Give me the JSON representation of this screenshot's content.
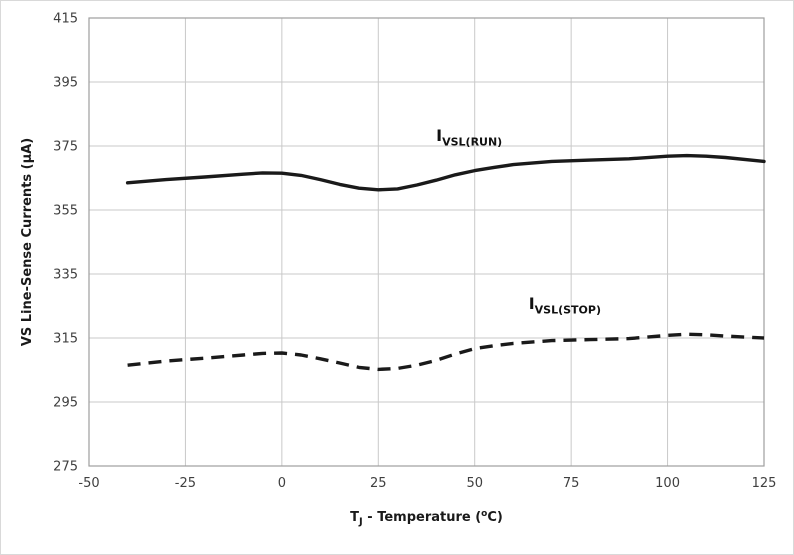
{
  "colors": {
    "line": "#1a1a1a",
    "grid": "#c9c9c9",
    "axis": "#9e9e9e",
    "tick_text": "#3f3f3f",
    "background": "#ffffff"
  },
  "chart_data": {
    "type": "line",
    "title": "",
    "xlabel_parts": [
      {
        "t": "T"
      },
      {
        "t": "J",
        "sub": true
      },
      {
        "t": " - Temperature ("
      },
      {
        "t": "o",
        "sup": true
      },
      {
        "t": "C)"
      }
    ],
    "ylabel": "VS Line-Sense Currents (µA)",
    "xlim": [
      -50,
      125
    ],
    "ylim": [
      275,
      415
    ],
    "xticks": [
      -50,
      -25,
      0,
      25,
      50,
      75,
      100,
      125
    ],
    "yticks": [
      275,
      295,
      315,
      335,
      355,
      375,
      395,
      415
    ],
    "grid": true,
    "legend_position": "inline-annotations",
    "series": [
      {
        "id": "ivsl-run",
        "name": "IVSL(RUN)",
        "style": "solid",
        "x": [
          -40,
          -30,
          -20,
          -10,
          -5,
          0,
          5,
          10,
          15,
          20,
          25,
          30,
          35,
          40,
          45,
          50,
          55,
          60,
          70,
          80,
          90,
          100,
          105,
          110,
          115,
          125
        ],
        "y": [
          363.5,
          364.5,
          365.3,
          366.2,
          366.6,
          366.5,
          365.8,
          364.5,
          363.0,
          361.8,
          361.3,
          361.6,
          362.8,
          364.3,
          366.0,
          367.3,
          368.3,
          369.2,
          370.2,
          370.6,
          371.0,
          371.8,
          372.0,
          371.8,
          371.4,
          370.2
        ]
      },
      {
        "id": "ivsl-stop",
        "name": "IVSL(STOP)",
        "style": "dashed",
        "x": [
          -40,
          -30,
          -20,
          -10,
          -5,
          0,
          5,
          10,
          15,
          20,
          25,
          30,
          35,
          40,
          45,
          50,
          55,
          60,
          70,
          80,
          90,
          100,
          105,
          110,
          115,
          125
        ],
        "y": [
          306.5,
          307.8,
          308.7,
          309.7,
          310.2,
          310.3,
          309.7,
          308.5,
          307.2,
          305.8,
          305.2,
          305.5,
          306.5,
          308.0,
          310.0,
          311.7,
          312.6,
          313.3,
          314.2,
          314.5,
          314.8,
          315.8,
          316.2,
          316.0,
          315.6,
          315.0
        ]
      }
    ],
    "annotations": [
      {
        "id": "run-label",
        "parts": [
          {
            "t": "I"
          },
          {
            "t": "VSL(RUN)",
            "sub": true
          }
        ],
        "x": 40,
        "y": 376.5
      },
      {
        "id": "stop-label",
        "parts": [
          {
            "t": "I"
          },
          {
            "t": "VSL(STOP)",
            "sub": true
          }
        ],
        "x": 64,
        "y": 324
      }
    ]
  }
}
